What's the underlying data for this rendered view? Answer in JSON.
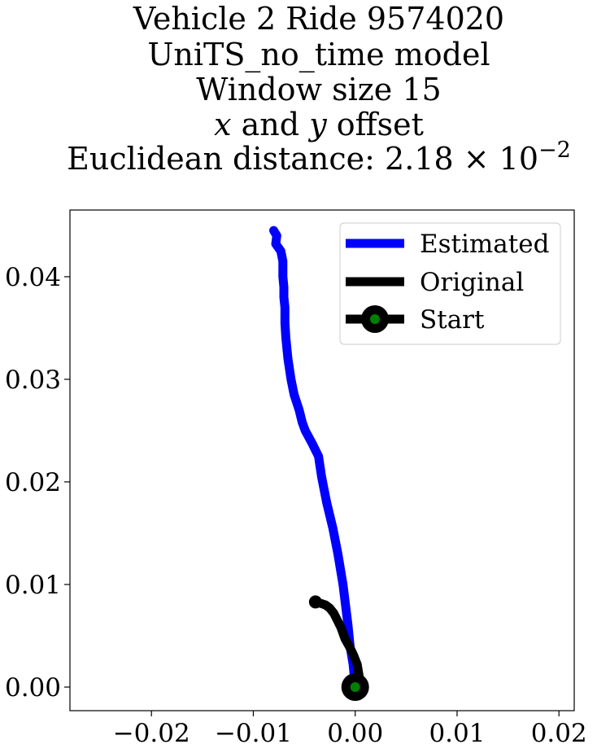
{
  "title": {
    "line1": "Vehicle 2 Ride 9574020",
    "line2": "UniTS_no_time model",
    "line3": "Window size 15",
    "line4_var1": "x",
    "line4_and": " and ",
    "line4_var2": "y",
    "line4_rest": " offset",
    "line5_prefix": "Euclidean distance: 2.18",
    "line5_times": " × ",
    "line5_base": "10",
    "line5_exp": "−2"
  },
  "colors": {
    "estimated": "#0000ff",
    "original": "#000000",
    "start_outer": "#000000",
    "start_inner": "#008000"
  },
  "chart_data": {
    "type": "line",
    "title": "Vehicle 2 Ride 9574020 UniTS_no_time model Window size 15 x and y offset Euclidean distance: 2.18×10^-2",
    "xlabel": "",
    "ylabel": "",
    "xlim": [
      -0.028,
      0.0215
    ],
    "ylim": [
      -0.0023,
      0.0465
    ],
    "xticks": [
      -0.02,
      -0.01,
      0.0,
      0.01,
      0.02
    ],
    "xtick_labels": [
      "−0.02",
      "−0.01",
      "0.00",
      "0.01",
      "0.02"
    ],
    "yticks": [
      0.0,
      0.01,
      0.02,
      0.03,
      0.04
    ],
    "ytick_labels": [
      "0.00",
      "0.01",
      "0.02",
      "0.03",
      "0.04"
    ],
    "grid": false,
    "legend": {
      "position": "top-right",
      "entries": [
        "Estimated",
        "Original",
        "Start"
      ]
    },
    "series": [
      {
        "name": "Estimated",
        "color": "#0000ff",
        "x": [
          0.0,
          -0.0002,
          -0.0005,
          -0.0007,
          -0.0012,
          -0.0017,
          -0.0022,
          -0.0028,
          -0.0033,
          -0.0036,
          -0.0042,
          -0.0049,
          -0.0052,
          -0.0055,
          -0.006,
          -0.0063,
          -0.0066,
          -0.0068,
          -0.0069,
          -0.0069,
          -0.007,
          -0.007,
          -0.0071,
          -0.0071,
          -0.0073,
          -0.0078,
          -0.0077,
          -0.008
        ],
        "y": [
          0.0,
          0.0022,
          0.004,
          0.006,
          0.01,
          0.013,
          0.0155,
          0.018,
          0.0205,
          0.0225,
          0.0237,
          0.025,
          0.0258,
          0.027,
          0.0285,
          0.03,
          0.032,
          0.034,
          0.0355,
          0.037,
          0.038,
          0.039,
          0.04,
          0.0415,
          0.0425,
          0.0432,
          0.044,
          0.0445
        ]
      },
      {
        "name": "Original",
        "color": "#000000",
        "x": [
          0.0,
          0.0004,
          0.0002,
          -0.0002,
          -0.0006,
          -0.001,
          -0.0014,
          -0.0018,
          -0.0021,
          -0.0025,
          -0.0029,
          -0.0032,
          -0.0039
        ],
        "y": [
          0.0,
          0.001,
          0.0022,
          0.0032,
          0.004,
          0.0047,
          0.0058,
          0.0066,
          0.0072,
          0.0077,
          0.008,
          0.0081,
          0.0083
        ]
      }
    ],
    "start_point": {
      "name": "Start",
      "x": 0.0,
      "y": 0.0
    }
  }
}
